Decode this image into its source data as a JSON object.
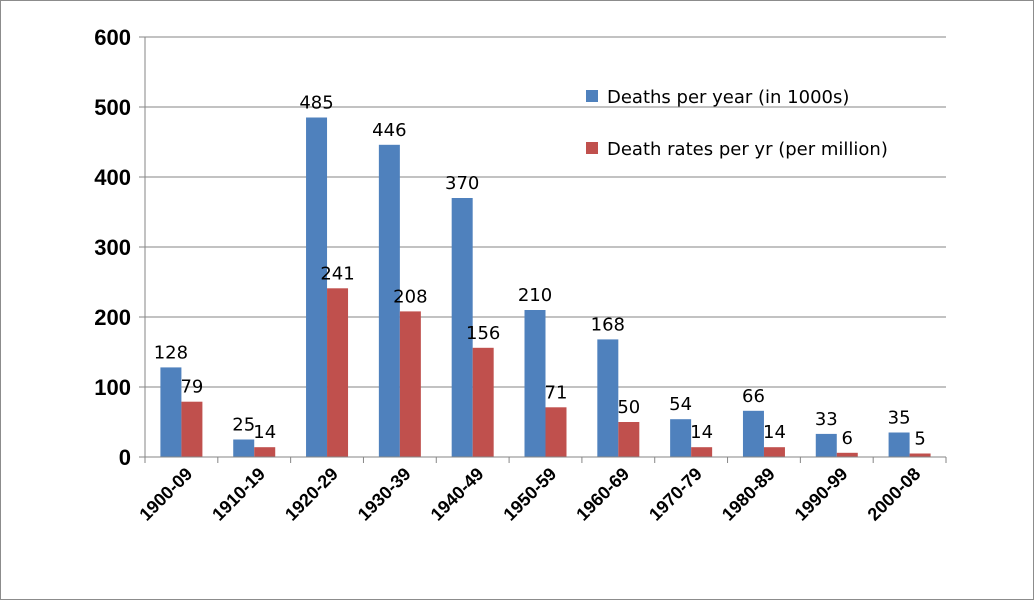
{
  "chart_data": {
    "type": "bar",
    "title": "",
    "xlabel": "",
    "ylabel": "",
    "ylim": [
      0,
      600
    ],
    "yticks": [
      0,
      100,
      200,
      300,
      400,
      500,
      600
    ],
    "grid": true,
    "legend_position": "top-right",
    "categories": [
      "1900-09",
      "1910-19",
      "1920-29",
      "1930-39",
      "1940-49",
      "1950-59",
      "1960-69",
      "1970-79",
      "1980-89",
      "1990-99",
      "2000-08"
    ],
    "series": [
      {
        "name": "Deaths per year (in 1000s)",
        "color": "#4f81bd",
        "values": [
          128,
          25,
          485,
          446,
          370,
          210,
          168,
          54,
          66,
          33,
          35
        ]
      },
      {
        "name": "Death rates per yr (per million)",
        "color": "#c0504d",
        "values": [
          79,
          14,
          241,
          208,
          156,
          71,
          50,
          14,
          14,
          6,
          5
        ]
      }
    ]
  }
}
